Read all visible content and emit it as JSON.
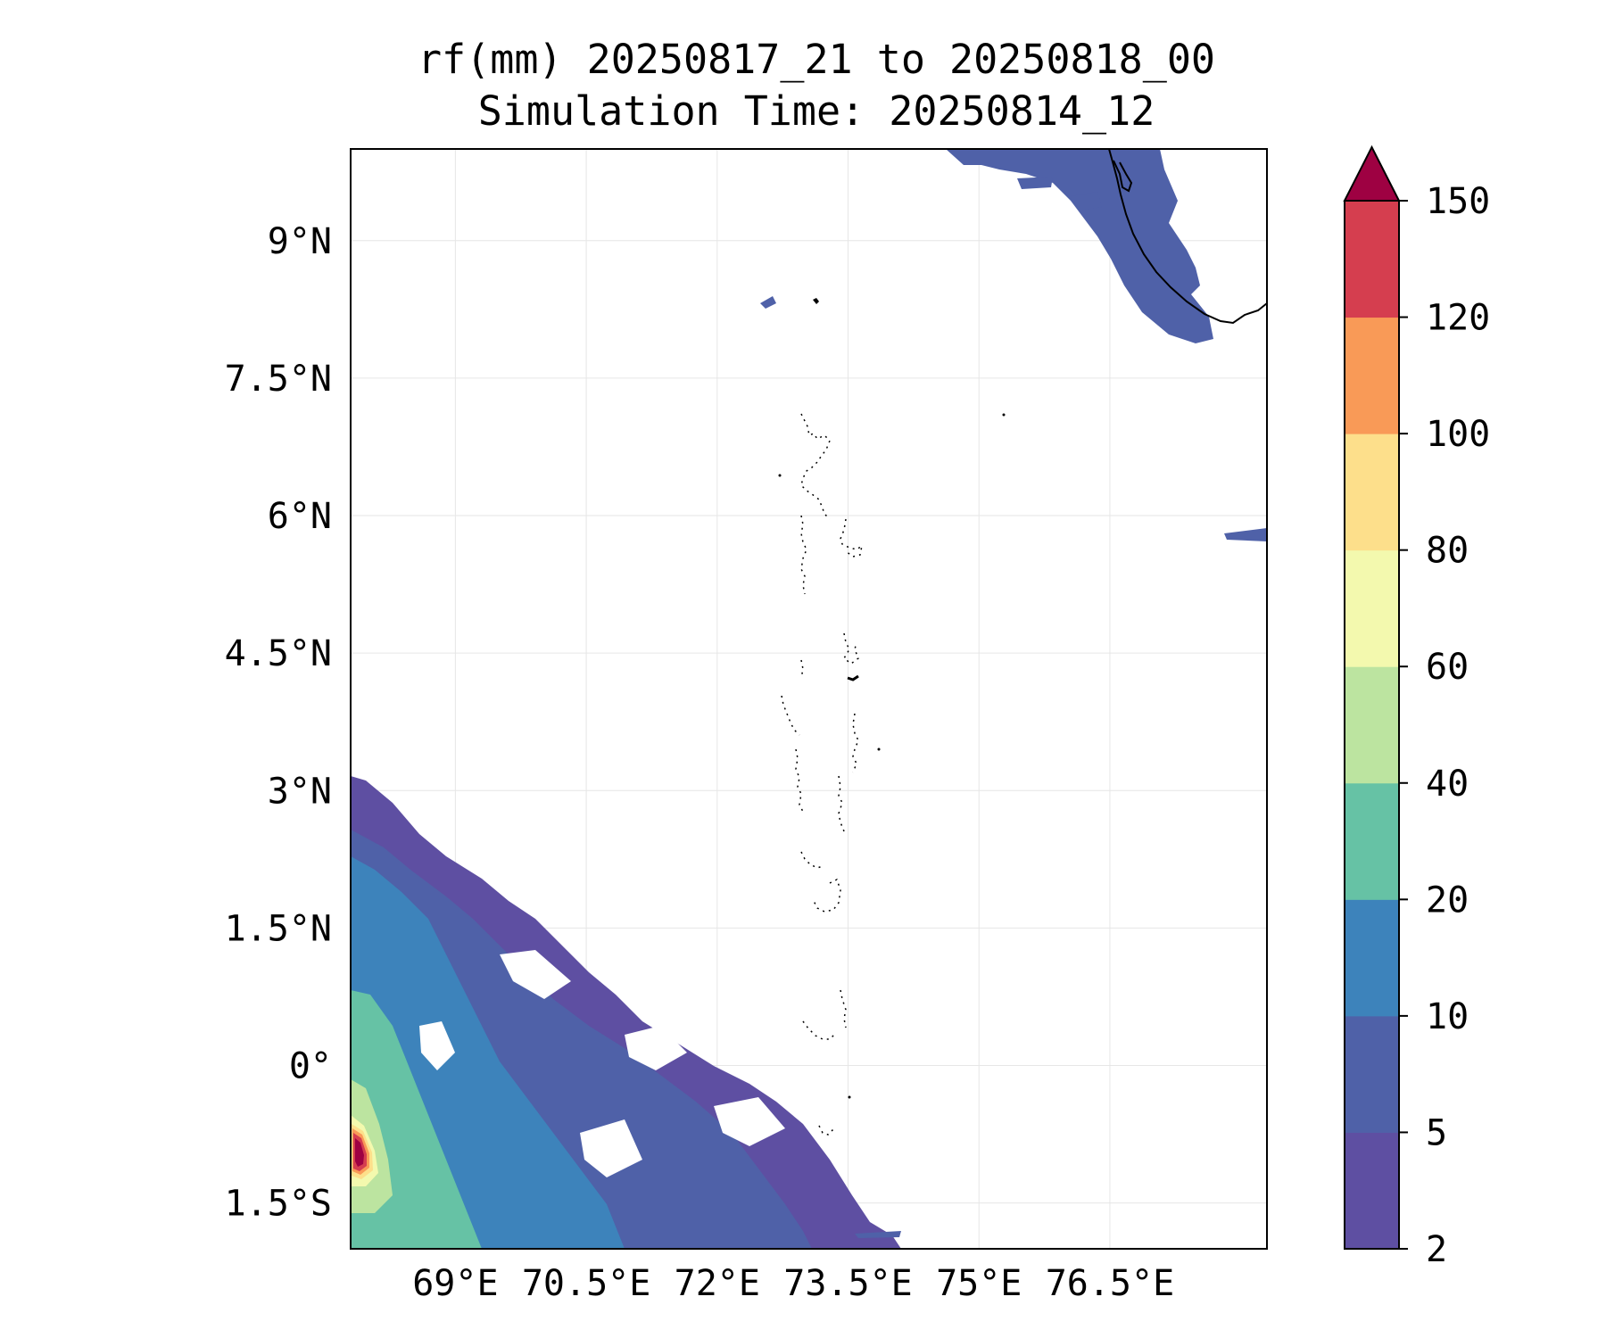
{
  "title": {
    "line1": "rf(mm) 20250817_21 to 20250818_00",
    "line2": "Simulation Time: 20250814_12"
  },
  "map": {
    "lon_range": [
      67.8,
      78.3
    ],
    "lat_range": [
      -2.0,
      10.0
    ],
    "lon_ticks": [
      69.0,
      70.5,
      72.0,
      73.5,
      75.0,
      76.5
    ],
    "lon_tick_labels": [
      "69°E",
      "70.5°E",
      "72°E",
      "73.5°E",
      "75°E",
      "76.5°E"
    ],
    "lat_ticks": [
      9.0,
      7.5,
      6.0,
      4.5,
      3.0,
      1.5,
      0.0,
      -1.5
    ],
    "lat_tick_labels": [
      "9°N",
      "7.5°N",
      "6°N",
      "4.5°N",
      "3°N",
      "1.5°N",
      "0°",
      "1.5°S"
    ],
    "grid": true
  },
  "colorbar": {
    "levels": [
      2,
      5,
      10,
      20,
      40,
      60,
      80,
      100,
      120,
      150
    ],
    "level_labels": [
      "2",
      "5",
      "10",
      "20",
      "40",
      "60",
      "80",
      "100",
      "120",
      "150"
    ],
    "colors": [
      "#5e4fa2",
      "#4f61a8",
      "#3d83bb",
      "#66c2a5",
      "#bce4a0",
      "#f3f9ae",
      "#fddf8b",
      "#f99a57",
      "#d53e4f"
    ],
    "extend_color": "#9e0142",
    "extend": "max"
  }
}
